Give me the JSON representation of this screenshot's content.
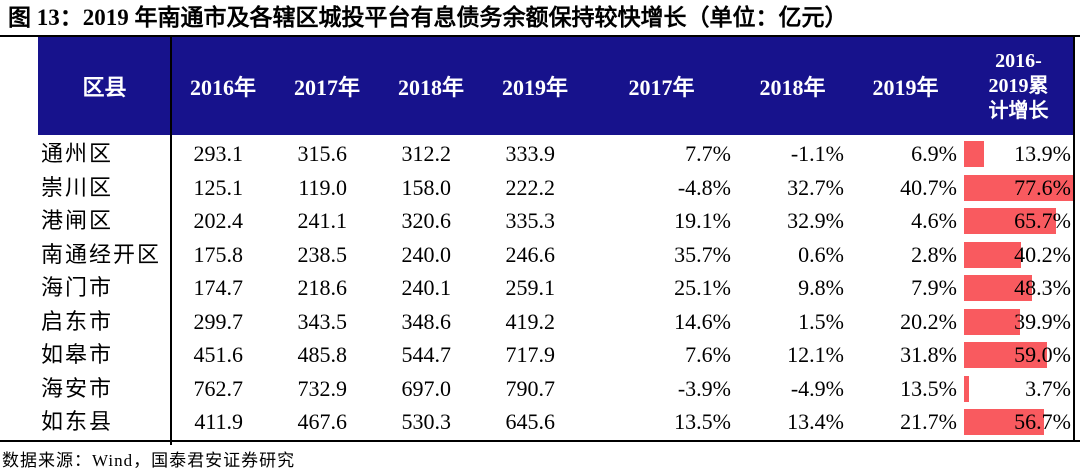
{
  "figure": {
    "title": "图 13：2019 年南通市及各辖区城投平台有息债务余额保持较快增长（单位：亿元）",
    "source": "数据来源：Wind，国泰君安证券研究"
  },
  "colors": {
    "header_bg": "#17128C",
    "header_text": "#FFFFFF",
    "databar": "#F95A5F",
    "border": "#000000"
  },
  "table": {
    "headers": [
      "区县",
      "2016年",
      "2017年",
      "2018年",
      "2019年",
      "2017年",
      "2018年",
      "2019年"
    ],
    "growth_header_lines": [
      "2016-",
      "2019累",
      "计增长"
    ],
    "rows": [
      {
        "name": "通州区",
        "v2016": "293.1",
        "v2017": "315.6",
        "v2018": "312.2",
        "v2019": "333.9",
        "g2017": "7.7%",
        "g2018": "-1.1%",
        "g2019": "6.9%",
        "growth": "13.9%"
      },
      {
        "name": "崇川区",
        "v2016": "125.1",
        "v2017": "119.0",
        "v2018": "158.0",
        "v2019": "222.2",
        "g2017": "-4.8%",
        "g2018": "32.7%",
        "g2019": "40.7%",
        "growth": "77.6%"
      },
      {
        "name": "港闸区",
        "v2016": "202.4",
        "v2017": "241.1",
        "v2018": "320.6",
        "v2019": "335.3",
        "g2017": "19.1%",
        "g2018": "32.9%",
        "g2019": "4.6%",
        "growth": "65.7%"
      },
      {
        "name": "南通经开区",
        "v2016": "175.8",
        "v2017": "238.5",
        "v2018": "240.0",
        "v2019": "246.6",
        "g2017": "35.7%",
        "g2018": "0.6%",
        "g2019": "2.8%",
        "growth": "40.2%"
      },
      {
        "name": "海门市",
        "v2016": "174.7",
        "v2017": "218.6",
        "v2018": "240.1",
        "v2019": "259.1",
        "g2017": "25.1%",
        "g2018": "9.8%",
        "g2019": "7.9%",
        "growth": "48.3%"
      },
      {
        "name": "启东市",
        "v2016": "299.7",
        "v2017": "343.5",
        "v2018": "348.6",
        "v2019": "419.2",
        "g2017": "14.6%",
        "g2018": "1.5%",
        "g2019": "20.2%",
        "growth": "39.9%"
      },
      {
        "name": "如皋市",
        "v2016": "451.6",
        "v2017": "485.8",
        "v2018": "544.7",
        "v2019": "717.9",
        "g2017": "7.6%",
        "g2018": "12.1%",
        "g2019": "31.8%",
        "growth": "59.0%"
      },
      {
        "name": "海安市",
        "v2016": "762.7",
        "v2017": "732.9",
        "v2018": "697.0",
        "v2019": "790.7",
        "g2017": "-3.9%",
        "g2018": "-4.9%",
        "g2019": "13.5%",
        "growth": "3.7%"
      },
      {
        "name": "如东县",
        "v2016": "411.9",
        "v2017": "467.6",
        "v2018": "530.3",
        "v2019": "645.6",
        "g2017": "13.5%",
        "g2018": "13.4%",
        "g2019": "21.7%",
        "growth": "56.7%"
      }
    ]
  },
  "chart_data": {
    "type": "table",
    "title": "图 13：2019 年南通市及各辖区城投平台有息债务余额保持较快增长（单位：亿元）",
    "columns": [
      "区县",
      "2016年",
      "2017年",
      "2018年",
      "2019年",
      "2017年",
      "2018年",
      "2019年",
      "2016-2019累计增长"
    ],
    "rows": [
      [
        "通州区",
        293.1,
        315.6,
        312.2,
        333.9,
        "7.7%",
        "-1.1%",
        "6.9%",
        "13.9%"
      ],
      [
        "崇川区",
        125.1,
        119.0,
        158.0,
        222.2,
        "-4.8%",
        "32.7%",
        "40.7%",
        "77.6%"
      ],
      [
        "港闸区",
        202.4,
        241.1,
        320.6,
        335.3,
        "19.1%",
        "32.9%",
        "4.6%",
        "65.7%"
      ],
      [
        "南通经开区",
        175.8,
        238.5,
        240.0,
        246.6,
        "35.7%",
        "0.6%",
        "2.8%",
        "40.2%"
      ],
      [
        "海门市",
        174.7,
        218.6,
        240.1,
        259.1,
        "25.1%",
        "9.8%",
        "7.9%",
        "48.3%"
      ],
      [
        "启东市",
        299.7,
        343.5,
        348.6,
        419.2,
        "14.6%",
        "1.5%",
        "20.2%",
        "39.9%"
      ],
      [
        "如皋市",
        451.6,
        485.8,
        544.7,
        717.9,
        "7.6%",
        "12.1%",
        "31.8%",
        "59.0%"
      ],
      [
        "海安市",
        762.7,
        732.9,
        697.0,
        790.7,
        "-3.9%",
        "-4.9%",
        "13.5%",
        "3.7%"
      ],
      [
        "如东县",
        411.9,
        467.6,
        530.3,
        645.6,
        "13.5%",
        "13.4%",
        "21.7%",
        "56.7%"
      ]
    ],
    "databar_column": "2016-2019累计增长",
    "databar_max": 77.6,
    "databar_color": "#F95A5F",
    "source": "数据来源：Wind，国泰君安证券研究"
  }
}
